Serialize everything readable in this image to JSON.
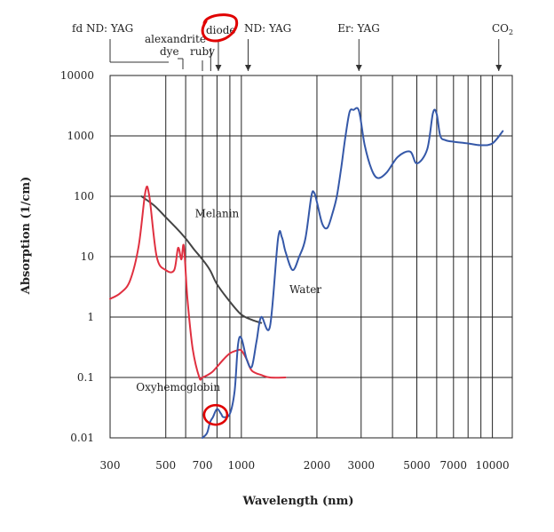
{
  "chart_data": {
    "type": "line",
    "xscale": "log",
    "yscale": "log",
    "xlabel": "Wavelength (nm)",
    "ylabel": "Absorption (1/cm)",
    "xlim": [
      300,
      12000
    ],
    "ylim": [
      0.01,
      10000
    ],
    "grid": true,
    "x_ticks": [
      {
        "value": 300,
        "label": "300"
      },
      {
        "value": 500,
        "label": "500"
      },
      {
        "value": 700,
        "label": "700"
      },
      {
        "value": 1000,
        "label": "1000"
      },
      {
        "value": 2000,
        "label": "2000"
      },
      {
        "value": 3000,
        "label": "3000"
      },
      {
        "value": 5000,
        "label": "5000"
      },
      {
        "value": 7000,
        "label": "7000"
      },
      {
        "value": 10000,
        "label": "10000"
      }
    ],
    "x_gridlines": [
      500,
      600,
      700,
      800,
      900,
      1000,
      2000,
      3000,
      4000,
      5000,
      6000,
      7000,
      8000,
      9000,
      10000
    ],
    "y_ticks": [
      {
        "value": 0.01,
        "label": "0.01"
      },
      {
        "value": 0.1,
        "label": "0.1"
      },
      {
        "value": 1,
        "label": "1"
      },
      {
        "value": 10,
        "label": "10"
      },
      {
        "value": 100,
        "label": "100"
      },
      {
        "value": 1000,
        "label": "1000"
      },
      {
        "value": 10000,
        "label": "10000"
      }
    ],
    "lasers": [
      {
        "name": "fd ND: YAG",
        "wavelength": 532
      },
      {
        "name": "alexandrite",
        "wavelength": 755
      },
      {
        "name": "dye",
        "wavelength": 585
      },
      {
        "name": "ruby",
        "wavelength": 694
      },
      {
        "name": "diode",
        "wavelength": 810
      },
      {
        "name": "ND: YAG",
        "wavelength": 1064
      },
      {
        "name": "Er: YAG",
        "wavelength": 2940
      },
      {
        "name": "CO",
        "sub": "2",
        "wavelength": 10600
      }
    ],
    "series": [
      {
        "name": "Melanin",
        "color": "#444444",
        "x": [
          400,
          450,
          500,
          550,
          600,
          650,
          700,
          750,
          800,
          900,
          1000,
          1100,
          1200
        ],
        "y": [
          100,
          70,
          45,
          30,
          20,
          13,
          9,
          6,
          3.5,
          1.8,
          1.1,
          0.9,
          0.8
        ]
      },
      {
        "name": "Oxyhemoglobin",
        "color": "#e03040",
        "x": [
          300,
          330,
          360,
          390,
          415,
          430,
          460,
          500,
          540,
          560,
          577,
          590,
          610,
          640,
          680,
          700,
          760,
          800,
          850,
          900,
          960,
          1000,
          1050,
          1100,
          1200,
          1300,
          1500
        ],
        "y": [
          2,
          2.5,
          4,
          15,
          120,
          100,
          10,
          6,
          6,
          14,
          9,
          15,
          2,
          0.3,
          0.1,
          0.1,
          0.12,
          0.15,
          0.2,
          0.25,
          0.28,
          0.28,
          0.2,
          0.13,
          0.11,
          0.1,
          0.1
        ]
      },
      {
        "name": "Water",
        "color": "#3558a8",
        "x": [
          700,
          730,
          750,
          770,
          800,
          830,
          850,
          900,
          940,
          970,
          1000,
          1050,
          1100,
          1150,
          1200,
          1300,
          1400,
          1450,
          1500,
          1600,
          1700,
          1800,
          1900,
          1950,
          2000,
          2100,
          2200,
          2300,
          2400,
          2500,
          2600,
          2700,
          2800,
          2940,
          3100,
          3300,
          3500,
          3800,
          4200,
          4700,
          5000,
          5500,
          5800,
          6000,
          6200,
          6500,
          7000,
          8000,
          9000,
          10000,
          11000
        ],
        "y": [
          0.01,
          0.012,
          0.018,
          0.022,
          0.03,
          0.025,
          0.022,
          0.025,
          0.06,
          0.35,
          0.45,
          0.2,
          0.15,
          0.4,
          1,
          0.7,
          20,
          21,
          12,
          6,
          10,
          20,
          100,
          115,
          80,
          35,
          30,
          50,
          100,
          300,
          1000,
          2500,
          2700,
          2600,
          700,
          280,
          200,
          250,
          450,
          550,
          350,
          600,
          2400,
          2300,
          1000,
          850,
          800,
          750,
          700,
          750,
          1200
        ]
      }
    ],
    "annotations": [
      {
        "text": "Melanin",
        "x": 800,
        "y": 45
      },
      {
        "text": "Water",
        "x": 1800,
        "y": 2.5
      },
      {
        "text": "Oxyhemoglobin",
        "x": 560,
        "y": 0.06
      }
    ],
    "markup_circles": [
      {
        "target": "diode",
        "color": "#e00000"
      },
      {
        "target": "water dip near 800 nm",
        "color": "#e00000"
      }
    ]
  }
}
